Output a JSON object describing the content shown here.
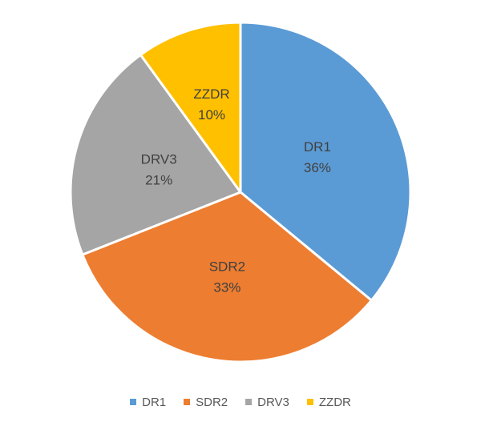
{
  "chart_data": {
    "type": "pie",
    "categories": [
      "DR1",
      "SDR2",
      "DRV3",
      "ZZDR"
    ],
    "values": [
      36,
      33,
      21,
      10
    ],
    "labels": [
      "36%",
      "33%",
      "21%",
      "10%"
    ],
    "colors": [
      "#5b9bd5",
      "#ed7d31",
      "#a5a5a5",
      "#ffc000"
    ],
    "title": "",
    "legend": "bottom",
    "start_angle_deg": 0,
    "direction": "clockwise"
  }
}
